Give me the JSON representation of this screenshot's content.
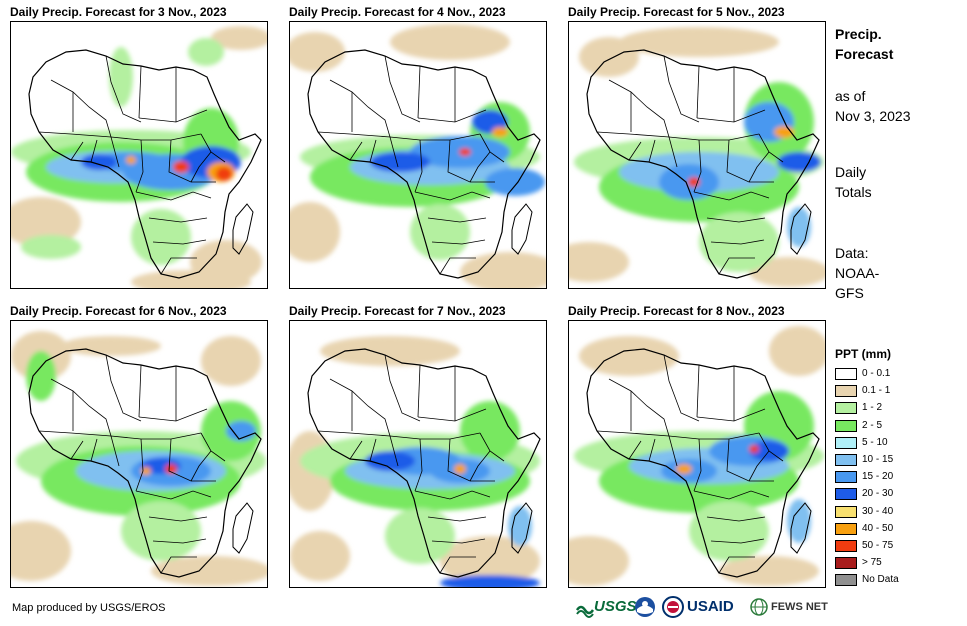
{
  "panels": [
    {
      "title": "Daily Precip. Forecast for 3 Nov., 2023",
      "variant": 0
    },
    {
      "title": "Daily Precip. Forecast for 4 Nov., 2023",
      "variant": 1
    },
    {
      "title": "Daily Precip. Forecast for 5 Nov., 2023",
      "variant": 2
    },
    {
      "title": "Daily Precip. Forecast for 6 Nov., 2023",
      "variant": 3
    },
    {
      "title": "Daily Precip. Forecast for 7 Nov., 2023",
      "variant": 4
    },
    {
      "title": "Daily Precip. Forecast for 8 Nov., 2023",
      "variant": 5
    }
  ],
  "sidebar": {
    "heading_line1": "Precip.",
    "heading_line2": "Forecast",
    "asof_line1": "as of",
    "asof_line2": "Nov 3, 2023",
    "daily_line1": "Daily",
    "daily_line2": "Totals",
    "data_line1": "Data:",
    "data_line2": "NOAA-",
    "data_line3": "GFS"
  },
  "legend": {
    "title": "PPT (mm)",
    "items": [
      {
        "label": "0 - 0.1",
        "color": "#ffffff"
      },
      {
        "label": "0.1 - 1",
        "color": "#e8d4b0"
      },
      {
        "label": "1 - 2",
        "color": "#b4f0a0"
      },
      {
        "label": "2 - 5",
        "color": "#78e860"
      },
      {
        "label": "5 - 10",
        "color": "#b0f0f8"
      },
      {
        "label": "10 - 15",
        "color": "#80c0f0"
      },
      {
        "label": "15 - 20",
        "color": "#4898f0"
      },
      {
        "label": "20 - 30",
        "color": "#1e5ce8"
      },
      {
        "label": "30 - 40",
        "color": "#f8e070"
      },
      {
        "label": "40 - 50",
        "color": "#f8a010"
      },
      {
        "label": "50 - 75",
        "color": "#f03c10"
      },
      {
        "label": "> 75",
        "color": "#a81c1c"
      },
      {
        "label": "No Data",
        "color": "#909090"
      }
    ]
  },
  "footer": {
    "credit": "Map produced by USGS/EROS",
    "logo_usgs": "USGS",
    "logo_usaid": "USAID",
    "logo_fews": "FEWS NET"
  }
}
